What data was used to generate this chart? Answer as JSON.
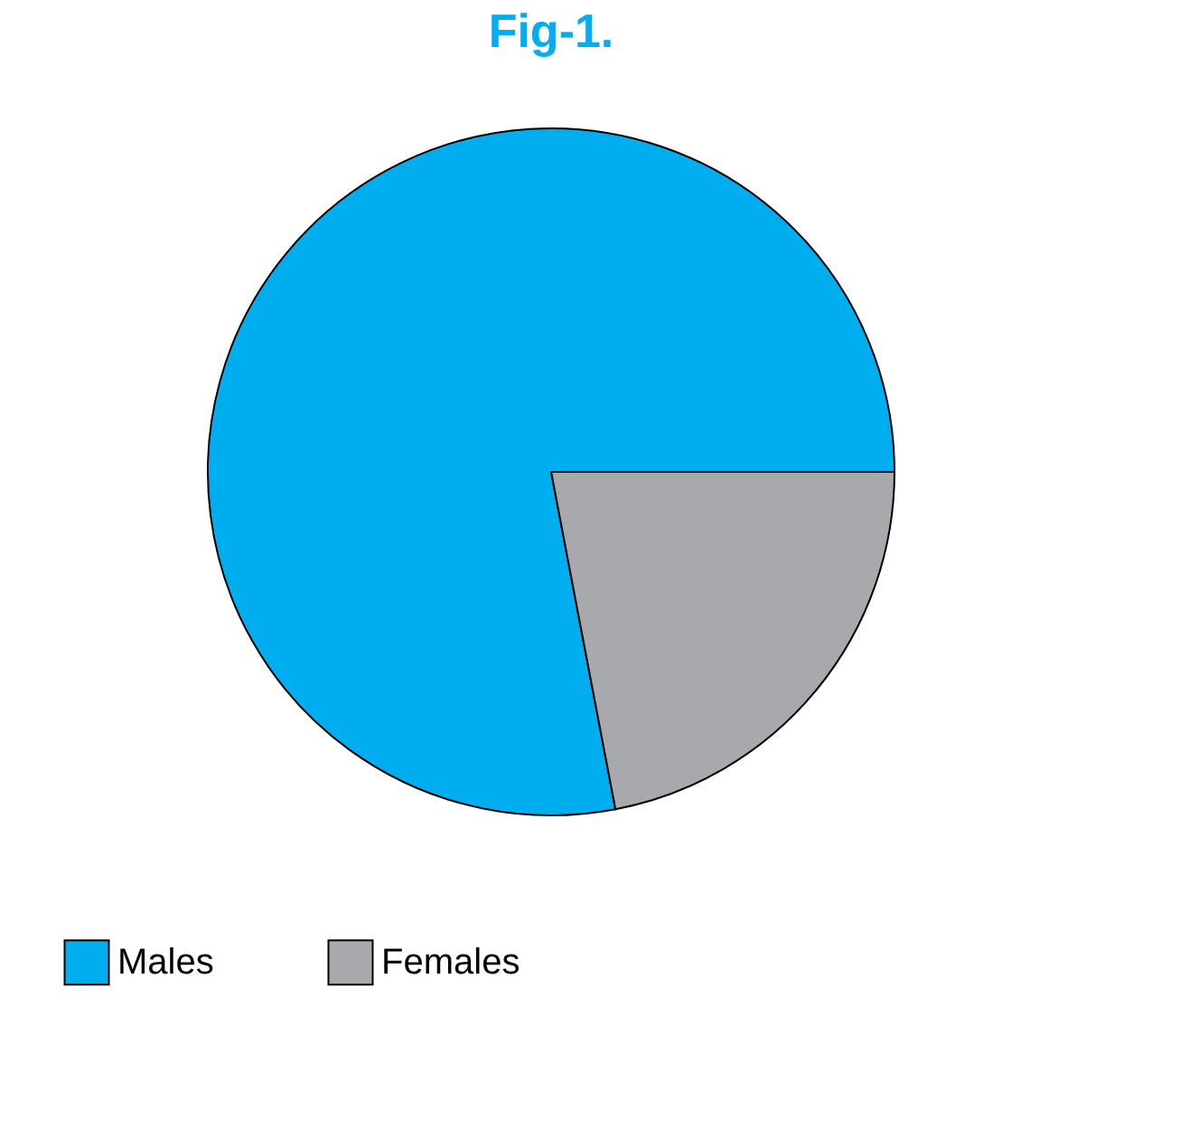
{
  "chart_data": {
    "type": "pie",
    "title": "Fig-1.",
    "categories": [
      "Males",
      "Females"
    ],
    "values": [
      78,
      22
    ],
    "colors": [
      "#00aeef",
      "#a7a9ac"
    ],
    "legend": "bottom"
  }
}
